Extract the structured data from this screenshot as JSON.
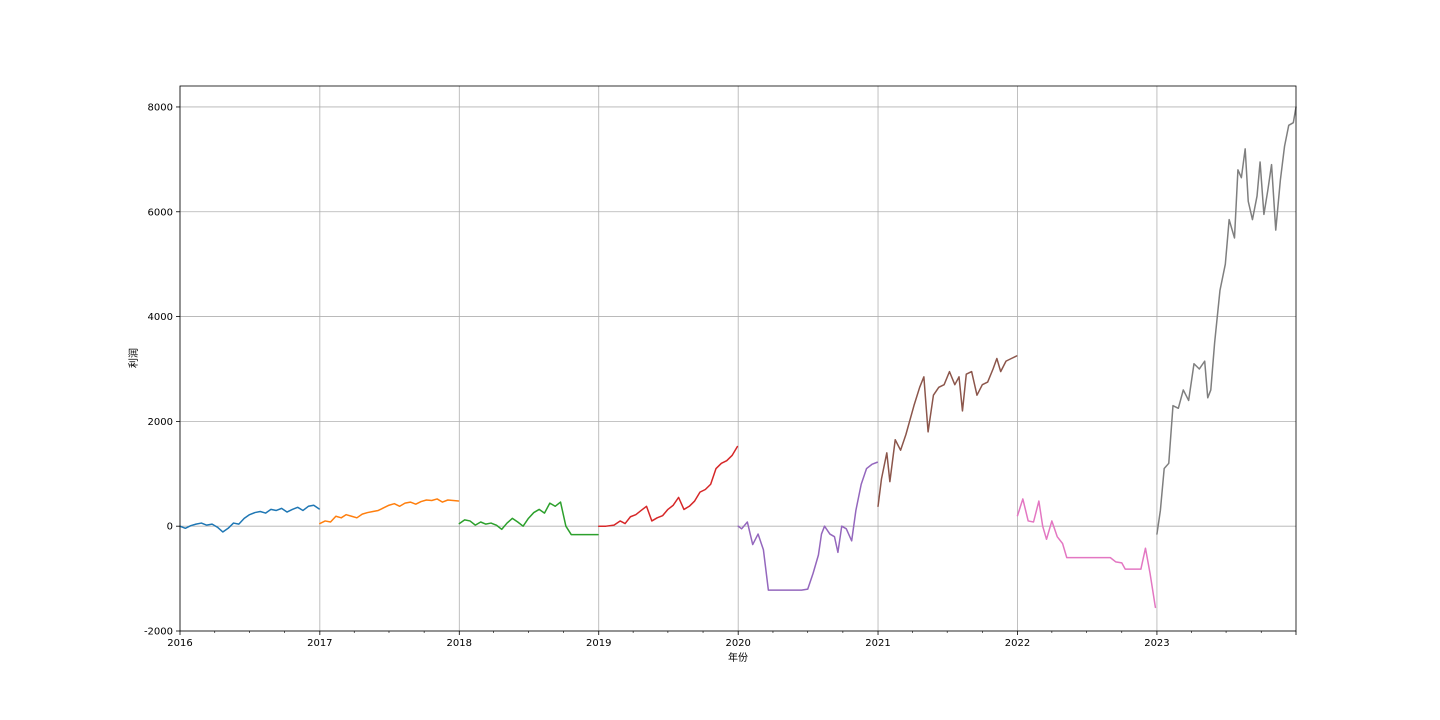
{
  "chart_data": {
    "type": "line",
    "xlabel": "年份",
    "ylabel": "利润",
    "xlim": [
      "2016-01-01",
      "2023-12-31"
    ],
    "ylim": [
      -2000,
      8400
    ],
    "x_tick_labels": [
      "2016",
      "2017",
      "2018",
      "2019",
      "2020",
      "2021",
      "2022",
      "2023"
    ],
    "y_tick_labels": [
      "-2000",
      "0",
      "2000",
      "4000",
      "6000",
      "8000"
    ],
    "grid": true,
    "legend": "none",
    "series": [
      {
        "color": "#1f77b4",
        "points": [
          [
            "2016-01-01",
            0
          ],
          [
            "2016-01-15",
            -40
          ],
          [
            "2016-01-29",
            10
          ],
          [
            "2016-02-12",
            40
          ],
          [
            "2016-02-26",
            60
          ],
          [
            "2016-03-11",
            20
          ],
          [
            "2016-03-25",
            40
          ],
          [
            "2016-04-08",
            -20
          ],
          [
            "2016-04-22",
            -110
          ],
          [
            "2016-05-06",
            -40
          ],
          [
            "2016-05-20",
            60
          ],
          [
            "2016-06-03",
            40
          ],
          [
            "2016-06-17",
            150
          ],
          [
            "2016-07-01",
            220
          ],
          [
            "2016-07-15",
            260
          ],
          [
            "2016-07-29",
            280
          ],
          [
            "2016-08-12",
            250
          ],
          [
            "2016-08-26",
            320
          ],
          [
            "2016-09-09",
            300
          ],
          [
            "2016-09-23",
            340
          ],
          [
            "2016-10-07",
            270
          ],
          [
            "2016-10-21",
            320
          ],
          [
            "2016-11-04",
            360
          ],
          [
            "2016-11-18",
            300
          ],
          [
            "2016-12-02",
            380
          ],
          [
            "2016-12-16",
            400
          ],
          [
            "2016-12-30",
            330
          ]
        ]
      },
      {
        "color": "#ff7f0e",
        "points": [
          [
            "2017-01-01",
            50
          ],
          [
            "2017-01-15",
            100
          ],
          [
            "2017-01-29",
            80
          ],
          [
            "2017-02-12",
            190
          ],
          [
            "2017-02-26",
            160
          ],
          [
            "2017-03-11",
            220
          ],
          [
            "2017-03-25",
            190
          ],
          [
            "2017-04-08",
            160
          ],
          [
            "2017-04-22",
            230
          ],
          [
            "2017-05-06",
            260
          ],
          [
            "2017-05-20",
            280
          ],
          [
            "2017-06-03",
            300
          ],
          [
            "2017-06-17",
            350
          ],
          [
            "2017-07-01",
            400
          ],
          [
            "2017-07-15",
            430
          ],
          [
            "2017-07-29",
            380
          ],
          [
            "2017-08-12",
            440
          ],
          [
            "2017-08-26",
            460
          ],
          [
            "2017-09-09",
            420
          ],
          [
            "2017-09-23",
            470
          ],
          [
            "2017-10-07",
            500
          ],
          [
            "2017-10-21",
            490
          ],
          [
            "2017-11-04",
            520
          ],
          [
            "2017-11-18",
            460
          ],
          [
            "2017-12-02",
            500
          ],
          [
            "2017-12-30",
            480
          ]
        ]
      },
      {
        "color": "#2ca02c",
        "points": [
          [
            "2018-01-01",
            50
          ],
          [
            "2018-01-15",
            120
          ],
          [
            "2018-01-29",
            100
          ],
          [
            "2018-02-12",
            20
          ],
          [
            "2018-02-26",
            80
          ],
          [
            "2018-03-11",
            40
          ],
          [
            "2018-03-25",
            60
          ],
          [
            "2018-04-08",
            20
          ],
          [
            "2018-04-22",
            -60
          ],
          [
            "2018-05-06",
            60
          ],
          [
            "2018-05-20",
            150
          ],
          [
            "2018-06-03",
            80
          ],
          [
            "2018-06-17",
            0
          ],
          [
            "2018-07-01",
            150
          ],
          [
            "2018-07-15",
            260
          ],
          [
            "2018-07-29",
            320
          ],
          [
            "2018-08-12",
            250
          ],
          [
            "2018-08-26",
            440
          ],
          [
            "2018-09-09",
            380
          ],
          [
            "2018-09-23",
            460
          ],
          [
            "2018-10-07",
            0
          ],
          [
            "2018-10-21",
            -160
          ],
          [
            "2018-11-04",
            -160
          ],
          [
            "2018-12-30",
            -160
          ]
        ]
      },
      {
        "color": "#d62728",
        "points": [
          [
            "2019-01-01",
            0
          ],
          [
            "2019-01-20",
            0
          ],
          [
            "2019-02-10",
            20
          ],
          [
            "2019-02-26",
            100
          ],
          [
            "2019-03-11",
            50
          ],
          [
            "2019-03-25",
            180
          ],
          [
            "2019-04-08",
            220
          ],
          [
            "2019-04-22",
            300
          ],
          [
            "2019-05-06",
            380
          ],
          [
            "2019-05-20",
            100
          ],
          [
            "2019-06-03",
            160
          ],
          [
            "2019-06-17",
            200
          ],
          [
            "2019-07-01",
            320
          ],
          [
            "2019-07-15",
            400
          ],
          [
            "2019-07-29",
            550
          ],
          [
            "2019-08-12",
            320
          ],
          [
            "2019-08-26",
            380
          ],
          [
            "2019-09-09",
            480
          ],
          [
            "2019-09-23",
            650
          ],
          [
            "2019-10-07",
            700
          ],
          [
            "2019-10-21",
            800
          ],
          [
            "2019-11-04",
            1100
          ],
          [
            "2019-11-18",
            1200
          ],
          [
            "2019-12-02",
            1250
          ],
          [
            "2019-12-16",
            1350
          ],
          [
            "2019-12-30",
            1520
          ]
        ]
      },
      {
        "color": "#9467bd",
        "points": [
          [
            "2020-01-01",
            0
          ],
          [
            "2020-01-10",
            -50
          ],
          [
            "2020-01-25",
            80
          ],
          [
            "2020-02-08",
            -350
          ],
          [
            "2020-02-22",
            -150
          ],
          [
            "2020-03-07",
            -450
          ],
          [
            "2020-03-20",
            -1220
          ],
          [
            "2020-04-15",
            -1220
          ],
          [
            "2020-05-15",
            -1220
          ],
          [
            "2020-06-15",
            -1220
          ],
          [
            "2020-07-01",
            -1200
          ],
          [
            "2020-07-15",
            -900
          ],
          [
            "2020-07-29",
            -550
          ],
          [
            "2020-08-06",
            -150
          ],
          [
            "2020-08-14",
            0
          ],
          [
            "2020-08-28",
            -150
          ],
          [
            "2020-09-09",
            -200
          ],
          [
            "2020-09-18",
            -500
          ],
          [
            "2020-09-28",
            0
          ],
          [
            "2020-10-10",
            -50
          ],
          [
            "2020-10-24",
            -280
          ],
          [
            "2020-11-04",
            300
          ],
          [
            "2020-11-18",
            800
          ],
          [
            "2020-12-02",
            1100
          ],
          [
            "2020-12-16",
            1180
          ],
          [
            "2020-12-30",
            1220
          ]
        ]
      },
      {
        "color": "#8c564b",
        "points": [
          [
            "2021-01-01",
            380
          ],
          [
            "2021-01-10",
            900
          ],
          [
            "2021-01-24",
            1400
          ],
          [
            "2021-02-01",
            850
          ],
          [
            "2021-02-15",
            1650
          ],
          [
            "2021-03-01",
            1450
          ],
          [
            "2021-03-15",
            1750
          ],
          [
            "2021-04-05",
            2300
          ],
          [
            "2021-04-20",
            2650
          ],
          [
            "2021-05-01",
            2850
          ],
          [
            "2021-05-12",
            1800
          ],
          [
            "2021-05-26",
            2500
          ],
          [
            "2021-06-09",
            2650
          ],
          [
            "2021-06-23",
            2700
          ],
          [
            "2021-07-07",
            2950
          ],
          [
            "2021-07-21",
            2700
          ],
          [
            "2021-08-01",
            2850
          ],
          [
            "2021-08-10",
            2200
          ],
          [
            "2021-08-20",
            2900
          ],
          [
            "2021-09-03",
            2950
          ],
          [
            "2021-09-17",
            2500
          ],
          [
            "2021-10-01",
            2700
          ],
          [
            "2021-10-15",
            2750
          ],
          [
            "2021-10-29",
            3000
          ],
          [
            "2021-11-08",
            3200
          ],
          [
            "2021-11-18",
            2950
          ],
          [
            "2021-12-02",
            3150
          ],
          [
            "2021-12-16",
            3200
          ],
          [
            "2021-12-30",
            3250
          ]
        ]
      },
      {
        "color": "#e377c2",
        "points": [
          [
            "2022-01-01",
            200
          ],
          [
            "2022-01-15",
            520
          ],
          [
            "2022-01-29",
            100
          ],
          [
            "2022-02-12",
            80
          ],
          [
            "2022-02-26",
            480
          ],
          [
            "2022-03-08",
            0
          ],
          [
            "2022-03-18",
            -250
          ],
          [
            "2022-04-01",
            100
          ],
          [
            "2022-04-15",
            -200
          ],
          [
            "2022-04-29",
            -330
          ],
          [
            "2022-05-10",
            -600
          ],
          [
            "2022-06-15",
            -600
          ],
          [
            "2022-07-15",
            -600
          ],
          [
            "2022-08-15",
            -600
          ],
          [
            "2022-09-01",
            -600
          ],
          [
            "2022-09-15",
            -680
          ],
          [
            "2022-10-01",
            -700
          ],
          [
            "2022-10-10",
            -820
          ],
          [
            "2022-11-01",
            -820
          ],
          [
            "2022-11-20",
            -820
          ],
          [
            "2022-12-02",
            -420
          ],
          [
            "2022-12-14",
            -900
          ],
          [
            "2022-12-28",
            -1550
          ]
        ]
      },
      {
        "color": "#7f7f7f",
        "points": [
          [
            "2023-01-01",
            -150
          ],
          [
            "2023-01-10",
            300
          ],
          [
            "2023-01-20",
            1100
          ],
          [
            "2023-02-01",
            1200
          ],
          [
            "2023-02-12",
            2300
          ],
          [
            "2023-02-26",
            2250
          ],
          [
            "2023-03-11",
            2600
          ],
          [
            "2023-03-25",
            2400
          ],
          [
            "2023-04-08",
            3100
          ],
          [
            "2023-04-22",
            3000
          ],
          [
            "2023-05-06",
            3150
          ],
          [
            "2023-05-14",
            2450
          ],
          [
            "2023-05-22",
            2600
          ],
          [
            "2023-06-01",
            3500
          ],
          [
            "2023-06-15",
            4500
          ],
          [
            "2023-06-29",
            5000
          ],
          [
            "2023-07-09",
            5850
          ],
          [
            "2023-07-23",
            5500
          ],
          [
            "2023-08-01",
            6800
          ],
          [
            "2023-08-10",
            6650
          ],
          [
            "2023-08-20",
            7200
          ],
          [
            "2023-08-28",
            6200
          ],
          [
            "2023-09-08",
            5850
          ],
          [
            "2023-09-20",
            6300
          ],
          [
            "2023-09-28",
            6950
          ],
          [
            "2023-10-08",
            5950
          ],
          [
            "2023-10-18",
            6400
          ],
          [
            "2023-10-28",
            6900
          ],
          [
            "2023-11-08",
            5650
          ],
          [
            "2023-11-20",
            6600
          ],
          [
            "2023-12-01",
            7250
          ],
          [
            "2023-12-12",
            7650
          ],
          [
            "2023-12-24",
            7700
          ],
          [
            "2023-12-31",
            8000
          ]
        ]
      }
    ]
  }
}
